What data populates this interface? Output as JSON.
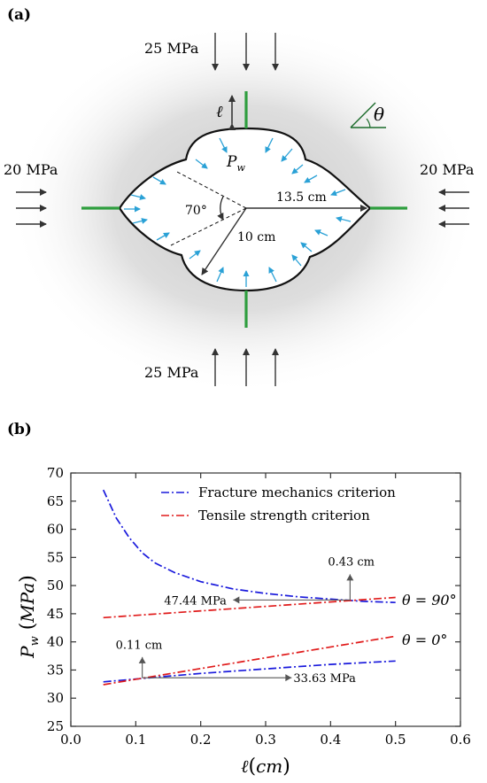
{
  "panel_a": {
    "label": "(a)",
    "stress_top": "25 MPa",
    "stress_bottom": "25 MPa",
    "stress_left": "20 MPa",
    "stress_right": "20 MPa",
    "pressure_symbol": "P",
    "pressure_subscript": "w",
    "crack_length_symbol": "ℓ",
    "angle_symbol": "θ",
    "angle_label": "70°",
    "radius_large": "13.5 cm",
    "radius_small": "10 cm",
    "colors": {
      "crack": "#2e9e3e",
      "pressure_arrow": "#2aa1d6",
      "load_arrow": "#333333"
    }
  },
  "panel_b": {
    "label": "(b)",
    "y_label_symbol": "P",
    "y_label_sub": "w",
    "y_label_unit": "MPa",
    "x_label_symbol": "ℓ",
    "x_label_unit": "cm",
    "legend": {
      "fracture": "Fracture mechanics criterion",
      "tensile": "Tensile strength criterion"
    },
    "annotations": {
      "theta90": "θ = 90°",
      "theta0": "θ = 0°",
      "cm043": "0.43 cm",
      "mpa4744": "47.44 MPa",
      "cm011": "0.11 cm",
      "mpa3363": "33.63 MPa"
    }
  },
  "chart_data": {
    "type": "line",
    "xlabel": "ℓ (cm)",
    "ylabel": "P_w (MPa)",
    "xlim": [
      0.0,
      0.6
    ],
    "ylim": [
      25,
      70
    ],
    "xticks": [
      "0.0",
      "0.1",
      "0.2",
      "0.3",
      "0.4",
      "0.5",
      "0.6"
    ],
    "yticks": [
      "25",
      "30",
      "35",
      "40",
      "45",
      "50",
      "55",
      "60",
      "65",
      "70"
    ],
    "legend_position": "top",
    "series": [
      {
        "name": "Fracture mechanics criterion",
        "color": "#1a1adc",
        "group": "θ = 90°",
        "x": [
          0.05,
          0.07,
          0.09,
          0.11,
          0.13,
          0.16,
          0.2,
          0.25,
          0.3,
          0.35,
          0.4,
          0.45,
          0.5
        ],
        "y": [
          67.0,
          62.0,
          58.5,
          55.8,
          54.0,
          52.3,
          50.7,
          49.4,
          48.6,
          48.0,
          47.6,
          47.2,
          47.0
        ]
      },
      {
        "name": "Tensile strength criterion",
        "color": "#e01b1b",
        "group": "θ = 90°",
        "x": [
          0.05,
          0.5
        ],
        "y": [
          44.3,
          47.9
        ]
      },
      {
        "name": "Fracture mechanics criterion",
        "color": "#1a1adc",
        "group": "θ = 0°",
        "x": [
          0.05,
          0.1,
          0.15,
          0.2,
          0.25,
          0.3,
          0.35,
          0.4,
          0.45,
          0.5
        ],
        "y": [
          32.9,
          33.4,
          33.9,
          34.4,
          34.8,
          35.2,
          35.6,
          36.0,
          36.3,
          36.6
        ]
      },
      {
        "name": "Tensile strength criterion",
        "color": "#e01b1b",
        "group": "θ = 0°",
        "x": [
          0.05,
          0.5
        ],
        "y": [
          32.4,
          41.0
        ]
      }
    ]
  }
}
